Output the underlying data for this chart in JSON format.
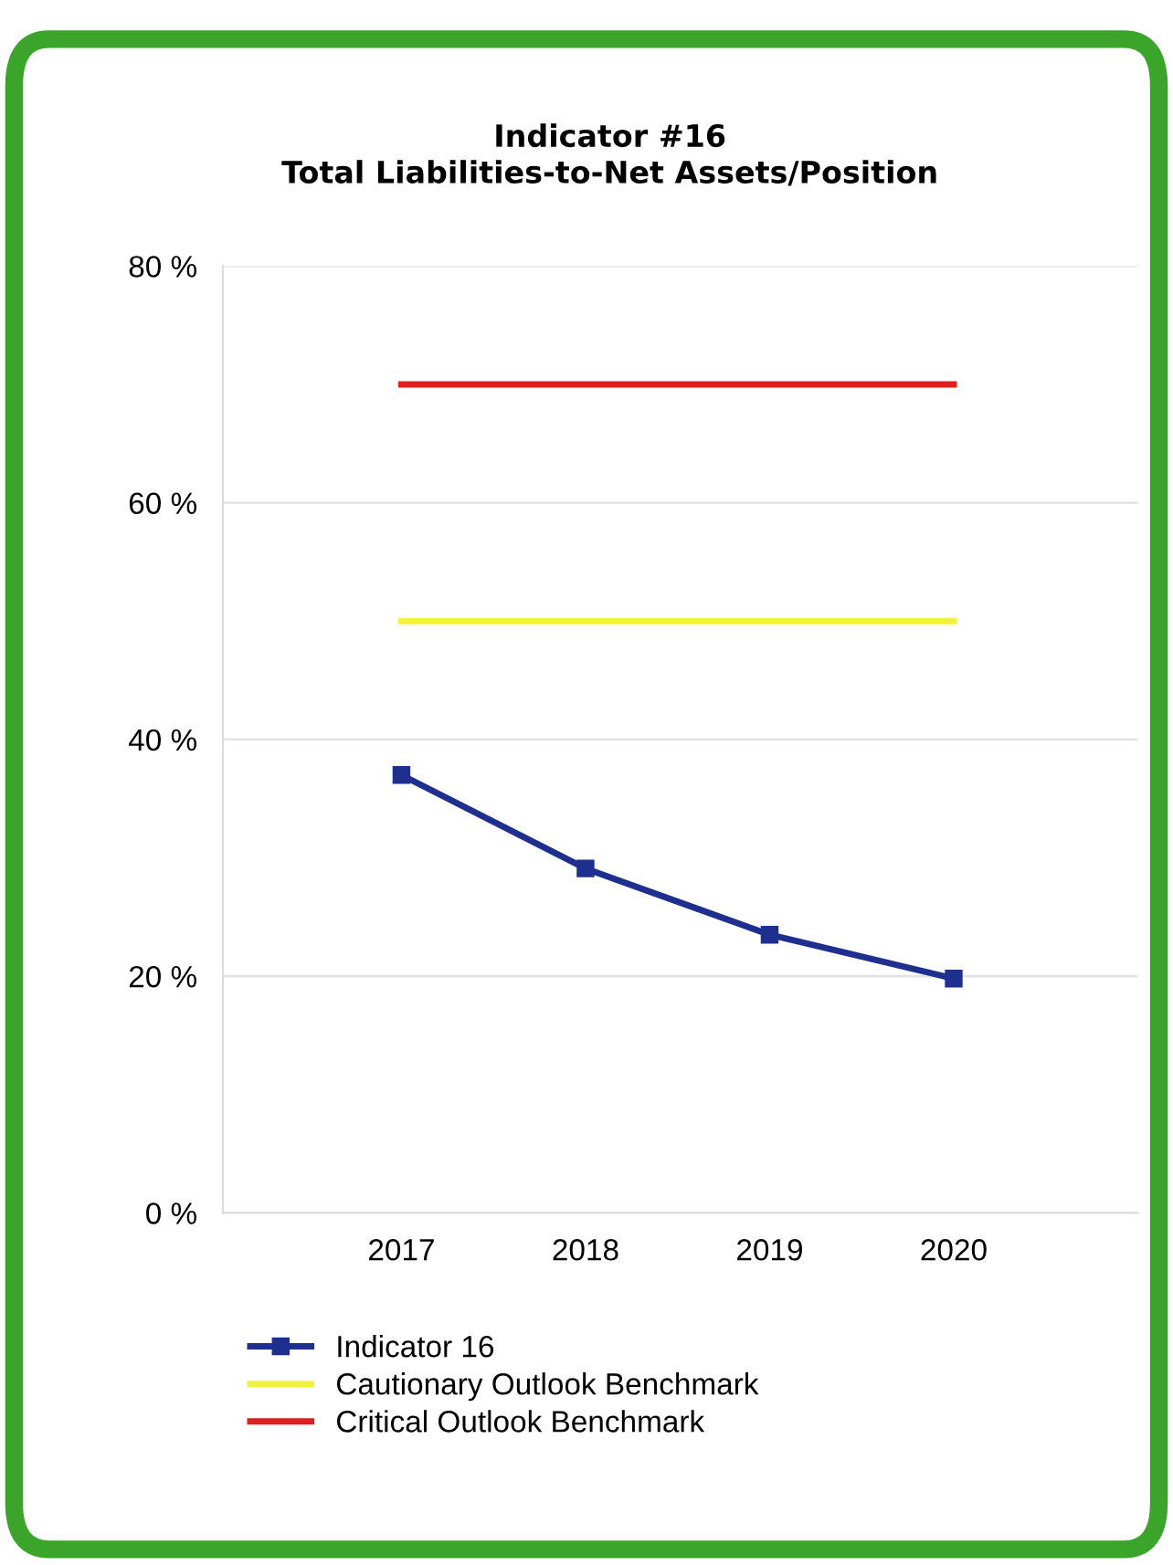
{
  "chart_data": {
    "type": "line",
    "title": "Indicator #16\nTotal Liabilities-to-Net Assets/Position",
    "categories": [
      "2017",
      "2018",
      "2019",
      "2020"
    ],
    "series": [
      {
        "name": "Indicator 16",
        "color": "#1f2f8f",
        "values": [
          37,
          29.1,
          23.5,
          19.8
        ],
        "marker": "square"
      },
      {
        "name": "Cautionary Outlook Benchmark",
        "color": "#f2f23a",
        "values": [
          50,
          50,
          50,
          50
        ],
        "marker": "none"
      },
      {
        "name": "Critical Outlook Benchmark",
        "color": "#e02020",
        "values": [
          70,
          70,
          70,
          70
        ],
        "marker": "none"
      }
    ],
    "ylim": [
      0,
      80
    ],
    "yticks": [
      {
        "value": 0,
        "label": "0 %"
      },
      {
        "value": 20,
        "label": "20 %"
      },
      {
        "value": 40,
        "label": "40 %"
      },
      {
        "value": 60,
        "label": "60 %"
      },
      {
        "value": 80,
        "label": "80 %"
      }
    ],
    "grid": "y",
    "legend": "bottom"
  }
}
